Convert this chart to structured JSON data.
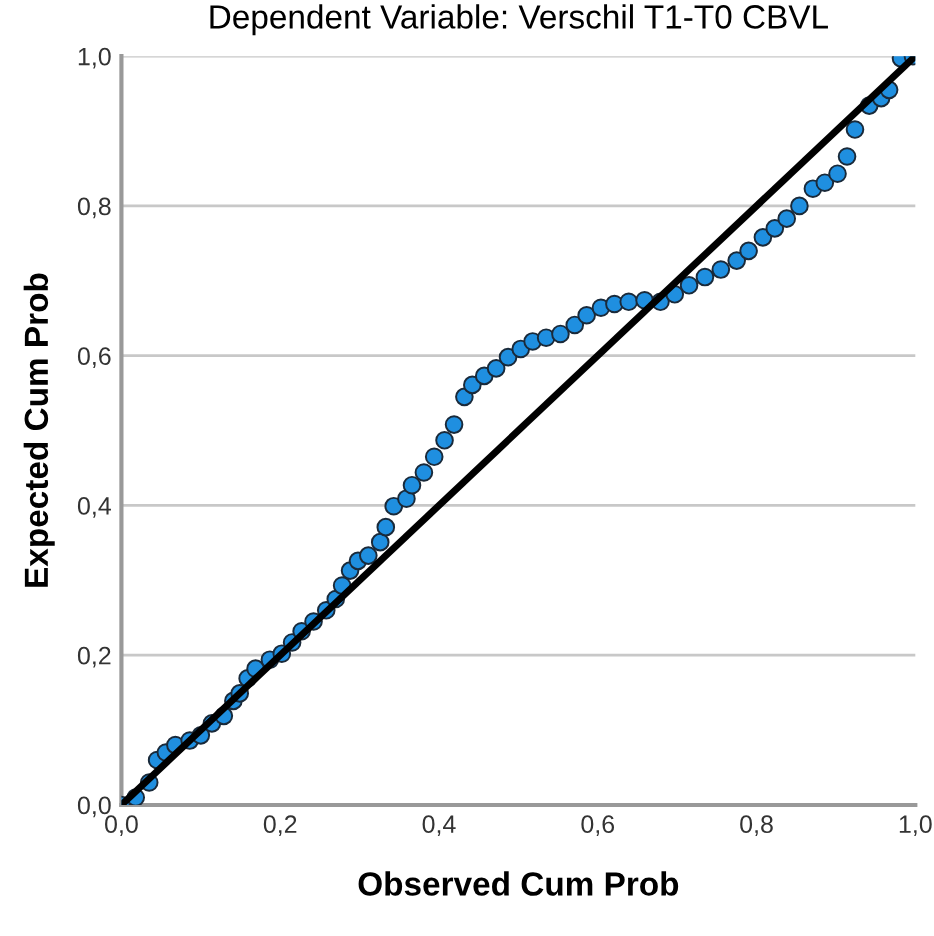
{
  "chart_data": {
    "type": "scatter",
    "title": "Dependent Variable: Verschil T1-T0 CBVL",
    "xlabel": "Observed Cum Prob",
    "ylabel": "Expected Cum Prob",
    "xlim": [
      0,
      1
    ],
    "ylim": [
      0,
      1
    ],
    "xticks": [
      {
        "value": 0,
        "label": "0,0"
      },
      {
        "value": 0.2,
        "label": "0,2"
      },
      {
        "value": 0.4,
        "label": "0,4"
      },
      {
        "value": 0.6,
        "label": "0,6"
      },
      {
        "value": 0.8,
        "label": "0,8"
      },
      {
        "value": 1,
        "label": "1,0"
      }
    ],
    "yticks": [
      {
        "value": 0,
        "label": "0,0"
      },
      {
        "value": 0.2,
        "label": "0,2"
      },
      {
        "value": 0.4,
        "label": "0,4"
      },
      {
        "value": 0.6,
        "label": "0,6"
      },
      {
        "value": 0.8,
        "label": "0,8"
      },
      {
        "value": 1,
        "label": "1,0"
      }
    ],
    "grid": "y",
    "series": [
      {
        "marker": "circle",
        "color": "#1f8fe0",
        "x": [
          0,
          0.018,
          0.035,
          0.045,
          0.056,
          0.068,
          0.086,
          0.1,
          0.114,
          0.129,
          0.141,
          0.149,
          0.159,
          0.169,
          0.187,
          0.202,
          0.215,
          0.227,
          0.242,
          0.258,
          0.27,
          0.278,
          0.288,
          0.298,
          0.311,
          0.326,
          0.333,
          0.343,
          0.359,
          0.366,
          0.381,
          0.394,
          0.407,
          0.419,
          0.432,
          0.442,
          0.457,
          0.472,
          0.487,
          0.503,
          0.518,
          0.535,
          0.553,
          0.571,
          0.586,
          0.604,
          0.621,
          0.639,
          0.659,
          0.679,
          0.697,
          0.715,
          0.735,
          0.755,
          0.775,
          0.79,
          0.808,
          0.823,
          0.838,
          0.854,
          0.871,
          0.886,
          0.902,
          0.914,
          0.924,
          0.942,
          0.957,
          0.967,
          0.982,
          0.997
        ],
        "values": [
          0,
          0.01,
          0.03,
          0.06,
          0.07,
          0.08,
          0.086,
          0.093,
          0.109,
          0.119,
          0.139,
          0.149,
          0.169,
          0.182,
          0.194,
          0.202,
          0.217,
          0.232,
          0.245,
          0.26,
          0.275,
          0.293,
          0.313,
          0.326,
          0.333,
          0.351,
          0.371,
          0.399,
          0.409,
          0.427,
          0.444,
          0.465,
          0.487,
          0.508,
          0.545,
          0.561,
          0.573,
          0.583,
          0.598,
          0.609,
          0.619,
          0.624,
          0.629,
          0.641,
          0.654,
          0.664,
          0.669,
          0.672,
          0.674,
          0.672,
          0.682,
          0.694,
          0.705,
          0.715,
          0.727,
          0.74,
          0.758,
          0.77,
          0.783,
          0.8,
          0.823,
          0.831,
          0.843,
          0.866,
          0.902,
          0.934,
          0.944,
          0.955,
          0.997,
          1.0
        ]
      },
      {
        "type": "line",
        "marker": "none",
        "color": "#000000",
        "x": [
          0,
          1
        ],
        "values": [
          0,
          1
        ]
      }
    ]
  }
}
